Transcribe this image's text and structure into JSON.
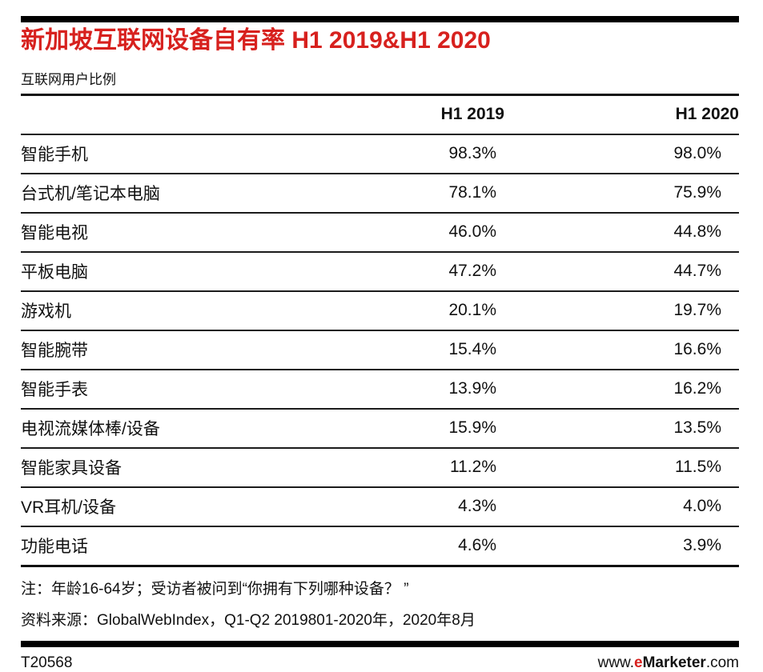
{
  "colors": {
    "accent_red": "#d7211e",
    "text": "#111111",
    "rule": "#000000"
  },
  "chart_data": {
    "type": "table",
    "title": "新加坡互联网设备自有率 H1 2019&H1 2020",
    "subtitle": "互联网用户比例",
    "columns": [
      "H1 2019",
      "H1 2020"
    ],
    "rows": [
      {
        "device": "智能手机",
        "h1_2019": "98.3%",
        "h1_2020": "98.0%"
      },
      {
        "device": "台式机/笔记本电脑",
        "h1_2019": "78.1%",
        "h1_2020": "75.9%"
      },
      {
        "device": "智能电视",
        "h1_2019": "46.0%",
        "h1_2020": "44.8%"
      },
      {
        "device": "平板电脑",
        "h1_2019": "47.2%",
        "h1_2020": "44.7%"
      },
      {
        "device": "游戏机",
        "h1_2019": "20.1%",
        "h1_2020": "19.7%"
      },
      {
        "device": "智能腕带",
        "h1_2019": "15.4%",
        "h1_2020": "16.6%"
      },
      {
        "device": "智能手表",
        "h1_2019": "13.9%",
        "h1_2020": "16.2%"
      },
      {
        "device": "电视流媒体棒/设备",
        "h1_2019": "15.9%",
        "h1_2020": "13.5%"
      },
      {
        "device": "智能家具设备",
        "h1_2019": "11.2%",
        "h1_2020": "11.5%"
      },
      {
        "device": "VR耳机/设备",
        "h1_2019": "4.3%",
        "h1_2020": "4.0%"
      },
      {
        "device": "功能电话",
        "h1_2019": "4.6%",
        "h1_2020": "3.9%"
      }
    ],
    "note": "注：年龄16-64岁；受访者被问到“你拥有下列哪种设备？ ”",
    "source": "资料来源：GlobalWebIndex，Q1-Q2 2019801-2020年，2020年8月"
  },
  "footer": {
    "chart_id": "T20568",
    "url_prefix": "www.",
    "url_brand_e": "e",
    "url_brand_rest": "Marketer",
    "url_suffix": ".com"
  }
}
